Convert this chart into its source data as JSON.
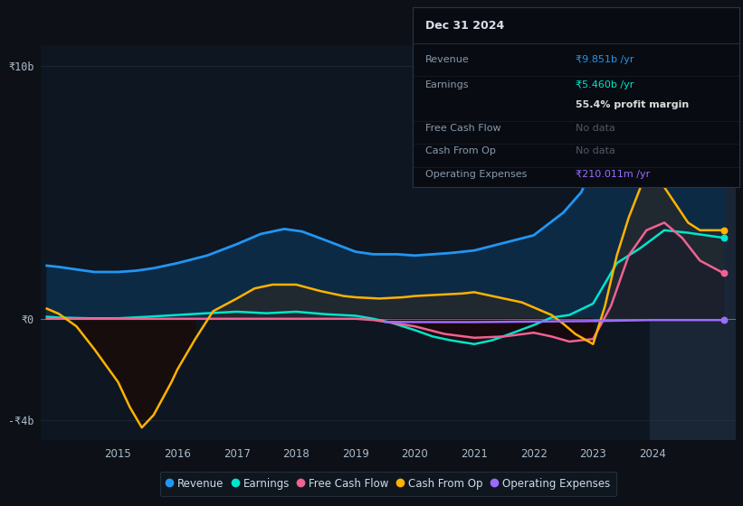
{
  "bg_color": "#0d1117",
  "plot_bg_color": "#0e1621",
  "grid_color": "#2a3545",
  "zero_line_color": "#aabbcc",
  "ylim": [
    -4.8,
    10.8
  ],
  "yticks": [
    -4,
    0,
    10
  ],
  "ytick_labels": [
    "-₹4b",
    "₹0",
    "₹10b"
  ],
  "xlim": [
    2013.7,
    2025.4
  ],
  "xticks": [
    2015,
    2016,
    2017,
    2018,
    2019,
    2020,
    2021,
    2022,
    2023,
    2024
  ],
  "revenue_color": "#2196f3",
  "revenue_fill_color": "#0d2a45",
  "earnings_color": "#00e5cc",
  "fcf_color": "#f06292",
  "cashfromop_color": "#ffb300",
  "opex_color": "#9c6bff",
  "revenue": [
    [
      2013.8,
      2.1
    ],
    [
      2014.0,
      2.05
    ],
    [
      2014.3,
      1.95
    ],
    [
      2014.6,
      1.85
    ],
    [
      2015.0,
      1.85
    ],
    [
      2015.3,
      1.9
    ],
    [
      2015.6,
      2.0
    ],
    [
      2016.0,
      2.2
    ],
    [
      2016.5,
      2.5
    ],
    [
      2017.0,
      2.95
    ],
    [
      2017.4,
      3.35
    ],
    [
      2017.8,
      3.55
    ],
    [
      2018.1,
      3.45
    ],
    [
      2018.5,
      3.1
    ],
    [
      2019.0,
      2.65
    ],
    [
      2019.3,
      2.55
    ],
    [
      2019.7,
      2.55
    ],
    [
      2020.0,
      2.5
    ],
    [
      2020.3,
      2.55
    ],
    [
      2020.6,
      2.6
    ],
    [
      2021.0,
      2.7
    ],
    [
      2021.5,
      3.0
    ],
    [
      2022.0,
      3.3
    ],
    [
      2022.5,
      4.2
    ],
    [
      2022.8,
      5.0
    ],
    [
      2023.0,
      6.0
    ],
    [
      2023.2,
      7.8
    ],
    [
      2023.4,
      6.8
    ],
    [
      2023.7,
      7.2
    ],
    [
      2024.0,
      8.6
    ],
    [
      2024.2,
      8.4
    ],
    [
      2024.4,
      9.2
    ],
    [
      2024.6,
      8.8
    ],
    [
      2024.9,
      9.5
    ],
    [
      2025.2,
      10.1
    ]
  ],
  "earnings": [
    [
      2013.8,
      0.08
    ],
    [
      2014.0,
      0.05
    ],
    [
      2014.5,
      0.02
    ],
    [
      2015.0,
      0.02
    ],
    [
      2015.5,
      0.08
    ],
    [
      2016.0,
      0.15
    ],
    [
      2016.5,
      0.22
    ],
    [
      2017.0,
      0.28
    ],
    [
      2017.5,
      0.22
    ],
    [
      2018.0,
      0.28
    ],
    [
      2018.5,
      0.18
    ],
    [
      2019.0,
      0.12
    ],
    [
      2019.3,
      0.0
    ],
    [
      2019.6,
      -0.15
    ],
    [
      2020.0,
      -0.45
    ],
    [
      2020.3,
      -0.7
    ],
    [
      2020.6,
      -0.85
    ],
    [
      2021.0,
      -1.0
    ],
    [
      2021.3,
      -0.85
    ],
    [
      2021.6,
      -0.6
    ],
    [
      2022.0,
      -0.25
    ],
    [
      2022.3,
      0.05
    ],
    [
      2022.6,
      0.15
    ],
    [
      2023.0,
      0.6
    ],
    [
      2023.4,
      2.2
    ],
    [
      2023.8,
      2.8
    ],
    [
      2024.2,
      3.5
    ],
    [
      2024.6,
      3.4
    ],
    [
      2025.2,
      3.2
    ]
  ],
  "fcf": [
    [
      2013.8,
      0.0
    ],
    [
      2014.0,
      0.0
    ],
    [
      2015.0,
      0.0
    ],
    [
      2019.0,
      0.0
    ],
    [
      2019.3,
      -0.05
    ],
    [
      2019.6,
      -0.15
    ],
    [
      2020.0,
      -0.3
    ],
    [
      2020.5,
      -0.6
    ],
    [
      2021.0,
      -0.75
    ],
    [
      2021.5,
      -0.7
    ],
    [
      2022.0,
      -0.55
    ],
    [
      2022.3,
      -0.7
    ],
    [
      2022.6,
      -0.9
    ],
    [
      2023.0,
      -0.8
    ],
    [
      2023.3,
      0.5
    ],
    [
      2023.6,
      2.5
    ],
    [
      2023.9,
      3.5
    ],
    [
      2024.2,
      3.8
    ],
    [
      2024.5,
      3.2
    ],
    [
      2024.8,
      2.3
    ],
    [
      2025.2,
      1.8
    ]
  ],
  "cashfromop": [
    [
      2013.8,
      0.4
    ],
    [
      2014.0,
      0.2
    ],
    [
      2014.3,
      -0.3
    ],
    [
      2014.6,
      -1.2
    ],
    [
      2015.0,
      -2.5
    ],
    [
      2015.2,
      -3.5
    ],
    [
      2015.4,
      -4.3
    ],
    [
      2015.6,
      -3.8
    ],
    [
      2015.9,
      -2.5
    ],
    [
      2016.0,
      -2.0
    ],
    [
      2016.3,
      -0.8
    ],
    [
      2016.6,
      0.3
    ],
    [
      2017.0,
      0.8
    ],
    [
      2017.3,
      1.2
    ],
    [
      2017.6,
      1.35
    ],
    [
      2018.0,
      1.35
    ],
    [
      2018.4,
      1.1
    ],
    [
      2018.8,
      0.9
    ],
    [
      2019.0,
      0.85
    ],
    [
      2019.4,
      0.8
    ],
    [
      2019.8,
      0.85
    ],
    [
      2020.0,
      0.9
    ],
    [
      2020.4,
      0.95
    ],
    [
      2020.8,
      1.0
    ],
    [
      2021.0,
      1.05
    ],
    [
      2021.4,
      0.85
    ],
    [
      2021.8,
      0.65
    ],
    [
      2022.0,
      0.45
    ],
    [
      2022.3,
      0.15
    ],
    [
      2022.5,
      -0.2
    ],
    [
      2022.7,
      -0.6
    ],
    [
      2023.0,
      -1.0
    ],
    [
      2023.2,
      0.5
    ],
    [
      2023.4,
      2.5
    ],
    [
      2023.6,
      4.0
    ],
    [
      2023.8,
      5.2
    ],
    [
      2024.0,
      5.6
    ],
    [
      2024.2,
      5.2
    ],
    [
      2024.4,
      4.5
    ],
    [
      2024.6,
      3.8
    ],
    [
      2024.8,
      3.5
    ],
    [
      2025.2,
      3.5
    ]
  ],
  "opex": [
    [
      2019.5,
      -0.12
    ],
    [
      2020.0,
      -0.13
    ],
    [
      2020.5,
      -0.13
    ],
    [
      2021.0,
      -0.13
    ],
    [
      2021.5,
      -0.12
    ],
    [
      2022.0,
      -0.11
    ],
    [
      2022.5,
      -0.1
    ],
    [
      2023.0,
      -0.09
    ],
    [
      2023.5,
      -0.07
    ],
    [
      2024.0,
      -0.05
    ],
    [
      2024.5,
      -0.05
    ],
    [
      2025.2,
      -0.05
    ]
  ],
  "info_box": {
    "title": "Dec 31 2024",
    "rows": [
      {
        "label": "Revenue",
        "value": "₹9.851b /yr",
        "value_color": "#2196f3",
        "dimmed": false
      },
      {
        "label": "Earnings",
        "value": "₹5.460b /yr",
        "value_color": "#00e5cc",
        "dimmed": false
      },
      {
        "label": "",
        "value": "55.4% profit margin",
        "value_color": "#dddddd",
        "dimmed": false,
        "bold": true
      },
      {
        "label": "Free Cash Flow",
        "value": "No data",
        "value_color": "#555566",
        "dimmed": true
      },
      {
        "label": "Cash From Op",
        "value": "No data",
        "value_color": "#555566",
        "dimmed": true
      },
      {
        "label": "Operating Expenses",
        "value": "₹210.011m /yr",
        "value_color": "#9c6bff",
        "dimmed": false
      }
    ],
    "bg_color": "#080c12",
    "border_color": "#2a3545",
    "text_color": "#8899aa",
    "title_color": "#ddddee",
    "title_border_color": "#2a3545"
  },
  "legend_items": [
    {
      "label": "Revenue",
      "color": "#2196f3"
    },
    {
      "label": "Earnings",
      "color": "#00e5cc"
    },
    {
      "label": "Free Cash Flow",
      "color": "#f06292"
    },
    {
      "label": "Cash From Op",
      "color": "#ffb300"
    },
    {
      "label": "Operating Expenses",
      "color": "#9c6bff"
    }
  ],
  "shaded_region_start": 2023.95,
  "shaded_region_color": "#1a2535"
}
